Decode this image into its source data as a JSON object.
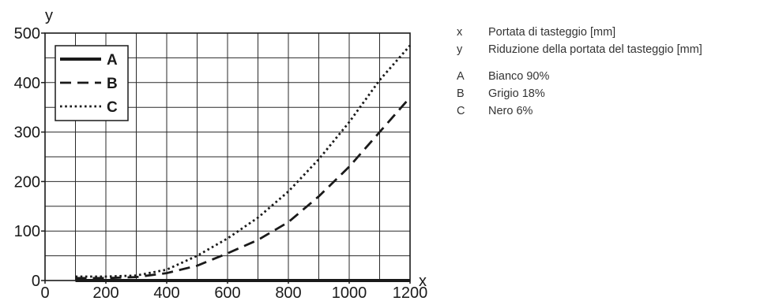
{
  "chart_data": {
    "type": "line",
    "xlabel": "x",
    "ylabel": "y",
    "xlim": [
      0,
      1200
    ],
    "ylim": [
      0,
      500
    ],
    "x_ticks": [
      "0",
      "200",
      "400",
      "600",
      "800",
      "1000",
      "1200"
    ],
    "y_ticks": [
      "0",
      "100",
      "200",
      "300",
      "400",
      "500"
    ],
    "grid": true,
    "legend_position": "top-left",
    "series": [
      {
        "name": "A",
        "style": "solid",
        "points": [
          [
            100,
            0
          ],
          [
            300,
            0
          ],
          [
            500,
            0
          ],
          [
            700,
            0
          ],
          [
            900,
            0
          ],
          [
            1100,
            0
          ],
          [
            1200,
            0
          ]
        ]
      },
      {
        "name": "B",
        "style": "dashed",
        "points": [
          [
            100,
            5
          ],
          [
            200,
            5
          ],
          [
            300,
            7
          ],
          [
            400,
            15
          ],
          [
            500,
            30
          ],
          [
            600,
            55
          ],
          [
            700,
            82
          ],
          [
            800,
            118
          ],
          [
            900,
            170
          ],
          [
            1000,
            230
          ],
          [
            1100,
            300
          ],
          [
            1200,
            370
          ]
        ]
      },
      {
        "name": "C",
        "style": "dotted",
        "points": [
          [
            100,
            8
          ],
          [
            200,
            8
          ],
          [
            300,
            10
          ],
          [
            400,
            22
          ],
          [
            500,
            50
          ],
          [
            600,
            85
          ],
          [
            700,
            127
          ],
          [
            800,
            180
          ],
          [
            900,
            245
          ],
          [
            1000,
            320
          ],
          [
            1100,
            405
          ],
          [
            1200,
            475
          ]
        ]
      }
    ]
  },
  "key": {
    "entries": [
      {
        "symbol": "x",
        "text": "Portata di tasteggio [mm]"
      },
      {
        "symbol": "y",
        "text": "Riduzione della portata del tasteggio [mm]"
      },
      {
        "symbol": "A",
        "text": "Bianco 90%"
      },
      {
        "symbol": "B",
        "text": "Grigio 18%"
      },
      {
        "symbol": "C",
        "text": "Nero 6%"
      }
    ]
  }
}
